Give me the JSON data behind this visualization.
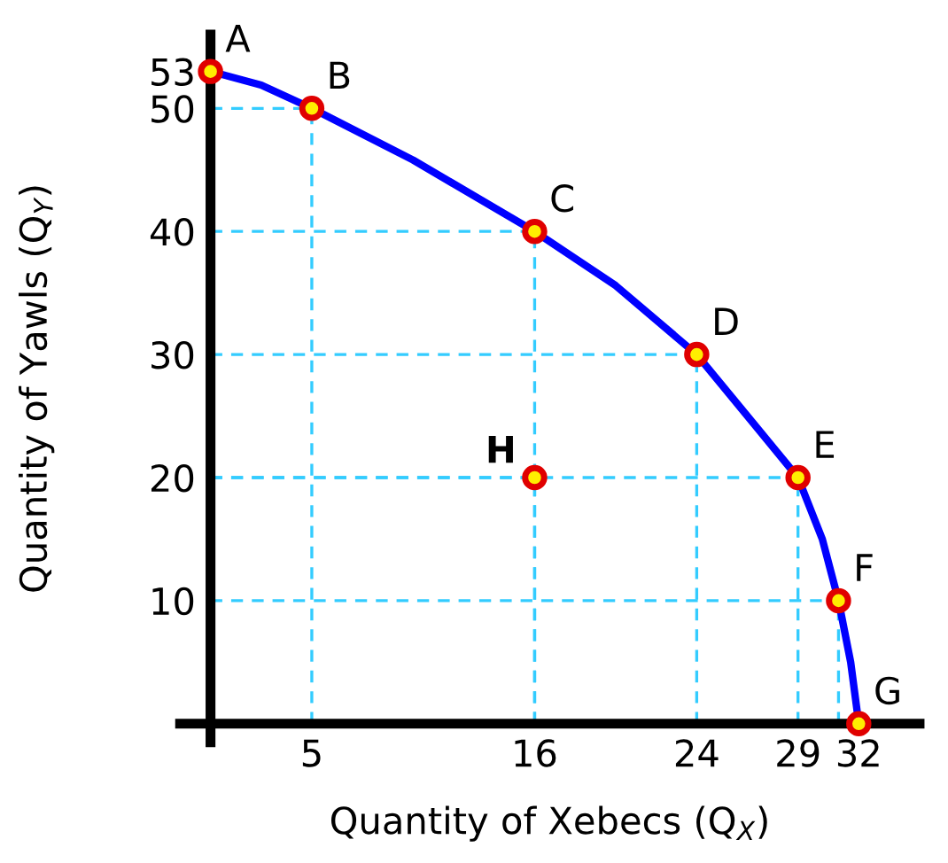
{
  "chart_data": {
    "type": "line",
    "xlabel": "Quantity of Xebecs (Q$_{X}$)",
    "ylabel": "Quantity of Yawls (Q$_{Y}$)",
    "xlim": [
      -1.5,
      35
    ],
    "ylim": [
      -1.5,
      56
    ],
    "xticks": [
      5,
      16,
      24,
      29,
      32
    ],
    "yticks": [
      10,
      20,
      30,
      40,
      50,
      53
    ],
    "grid": true,
    "legend": false,
    "series": [
      {
        "color": "#0000ff",
        "x": [
          0,
          2.5,
          5,
          10,
          16,
          20,
          24,
          27,
          29,
          30.2,
          31,
          31.6,
          32
        ],
        "values": [
          53,
          51.9,
          50,
          45.8,
          40,
          35.6,
          30,
          24,
          20,
          15,
          10,
          5,
          0
        ],
        "marker": "none"
      },
      {
        "type": "scatter",
        "color": "#e00000",
        "x": [
          0,
          5,
          16,
          24,
          29,
          31,
          32,
          16
        ],
        "values": [
          53,
          50,
          40,
          30,
          20,
          10,
          0,
          20
        ],
        "marker": "circle"
      }
    ],
    "annotations": [
      {
        "text": "A",
        "x": 0,
        "y": 53
      },
      {
        "text": "B",
        "x": 5,
        "y": 50
      },
      {
        "text": "C",
        "x": 16,
        "y": 40
      },
      {
        "text": "D",
        "x": 24,
        "y": 30
      },
      {
        "text": "E",
        "x": 29,
        "y": 20
      },
      {
        "text": "F",
        "x": 31,
        "y": 10
      },
      {
        "text": "G",
        "x": 32,
        "y": 0
      },
      {
        "text": "H",
        "x": 16,
        "y": 20
      }
    ]
  }
}
